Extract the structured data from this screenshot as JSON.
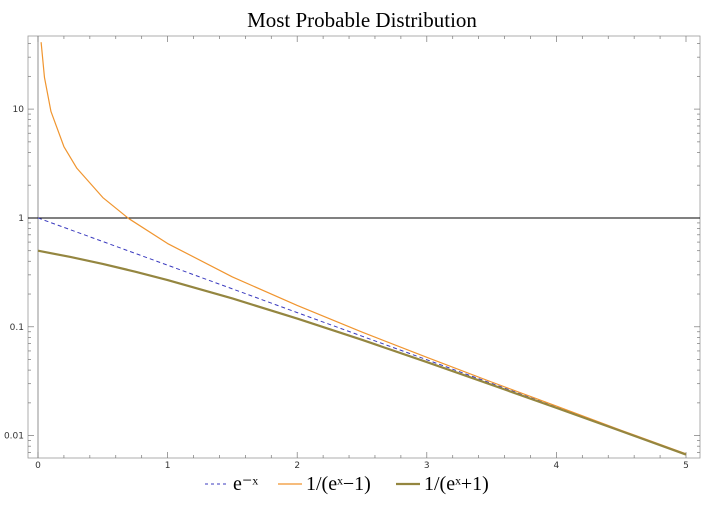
{
  "chart_data": {
    "type": "line",
    "title": "Most Probable Distribution",
    "xlabel": "",
    "ylabel": "",
    "xlim": [
      0,
      5
    ],
    "ylim": [
      0.0065,
      45
    ],
    "y_scale": "log",
    "grid": false,
    "legend_position": "bottom",
    "reference_line_y": 1,
    "x_ticks": [
      0,
      1,
      2,
      3,
      4,
      5
    ],
    "x_tick_labels": [
      "0",
      "1",
      "2",
      "3",
      "4",
      "5"
    ],
    "y_ticks": [
      0.01,
      0.1,
      1,
      10
    ],
    "y_tick_labels": [
      "0.01",
      "0.1",
      "1",
      "10"
    ],
    "series": [
      {
        "name": "e⁻ˣ",
        "color": "#3b3bbf",
        "style": "dashed",
        "x": [
          0,
          0.5,
          1,
          1.5,
          2,
          2.5,
          3,
          3.5,
          4,
          4.5,
          5
        ],
        "values": [
          1,
          0.607,
          0.368,
          0.223,
          0.135,
          0.082,
          0.0498,
          0.0302,
          0.0183,
          0.0111,
          0.0067
        ]
      },
      {
        "name": "1/(eˣ−1)",
        "color": "#f0952f",
        "style": "solid",
        "x": [
          0.024,
          0.05,
          0.1,
          0.2,
          0.3,
          0.5,
          0.7,
          1,
          1.5,
          2,
          2.5,
          3,
          3.5,
          4,
          4.5,
          5
        ],
        "values": [
          41.2,
          19.5,
          9.51,
          4.52,
          2.86,
          1.54,
          0.987,
          0.582,
          0.287,
          0.157,
          0.0894,
          0.0524,
          0.0311,
          0.0187,
          0.0112,
          0.0068
        ]
      },
      {
        "name": "1/(eˣ+1)",
        "color": "#948640",
        "style": "solid-thick",
        "x": [
          0,
          0.25,
          0.5,
          0.75,
          1,
          1.5,
          2,
          2.5,
          3,
          3.5,
          4,
          4.5,
          5
        ],
        "values": [
          0.5,
          0.438,
          0.378,
          0.321,
          0.269,
          0.182,
          0.119,
          0.0759,
          0.0474,
          0.0293,
          0.018,
          0.011,
          0.0067
        ]
      }
    ]
  }
}
